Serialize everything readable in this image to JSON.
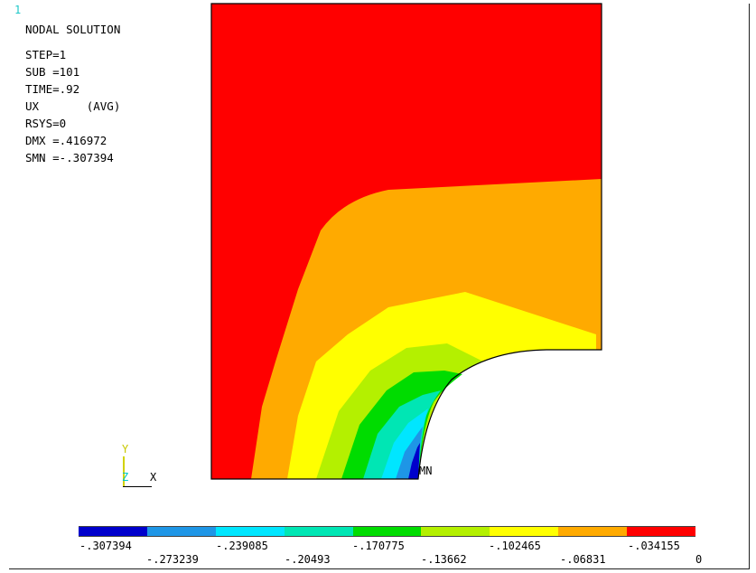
{
  "window_number": "1",
  "info": {
    "title": "NODAL SOLUTION",
    "step": "STEP=1",
    "sub": "SUB =101",
    "time": "TIME=.92",
    "item": "UX       (AVG)",
    "rsys": "RSYS=0",
    "dmx": "DMX =.416972",
    "smn": "SMN =-.307394"
  },
  "min_marker": "MN",
  "triad": {
    "y_label": "Y",
    "z_label": "Z",
    "x_label": "X"
  },
  "legend": {
    "colors": [
      "#0000cc",
      "#1e96e6",
      "#00e6ff",
      "#00e6b4",
      "#00dc00",
      "#b4f000",
      "#ffff00",
      "#ffaa00",
      "#ff0000"
    ],
    "upper_labels": [
      "-.307394",
      "-.239085",
      "-.170775",
      "-.102465",
      "-.034155"
    ],
    "lower_labels": [
      "-.273239",
      "-.20493",
      "-.13662",
      "-.06831",
      "0"
    ]
  }
}
